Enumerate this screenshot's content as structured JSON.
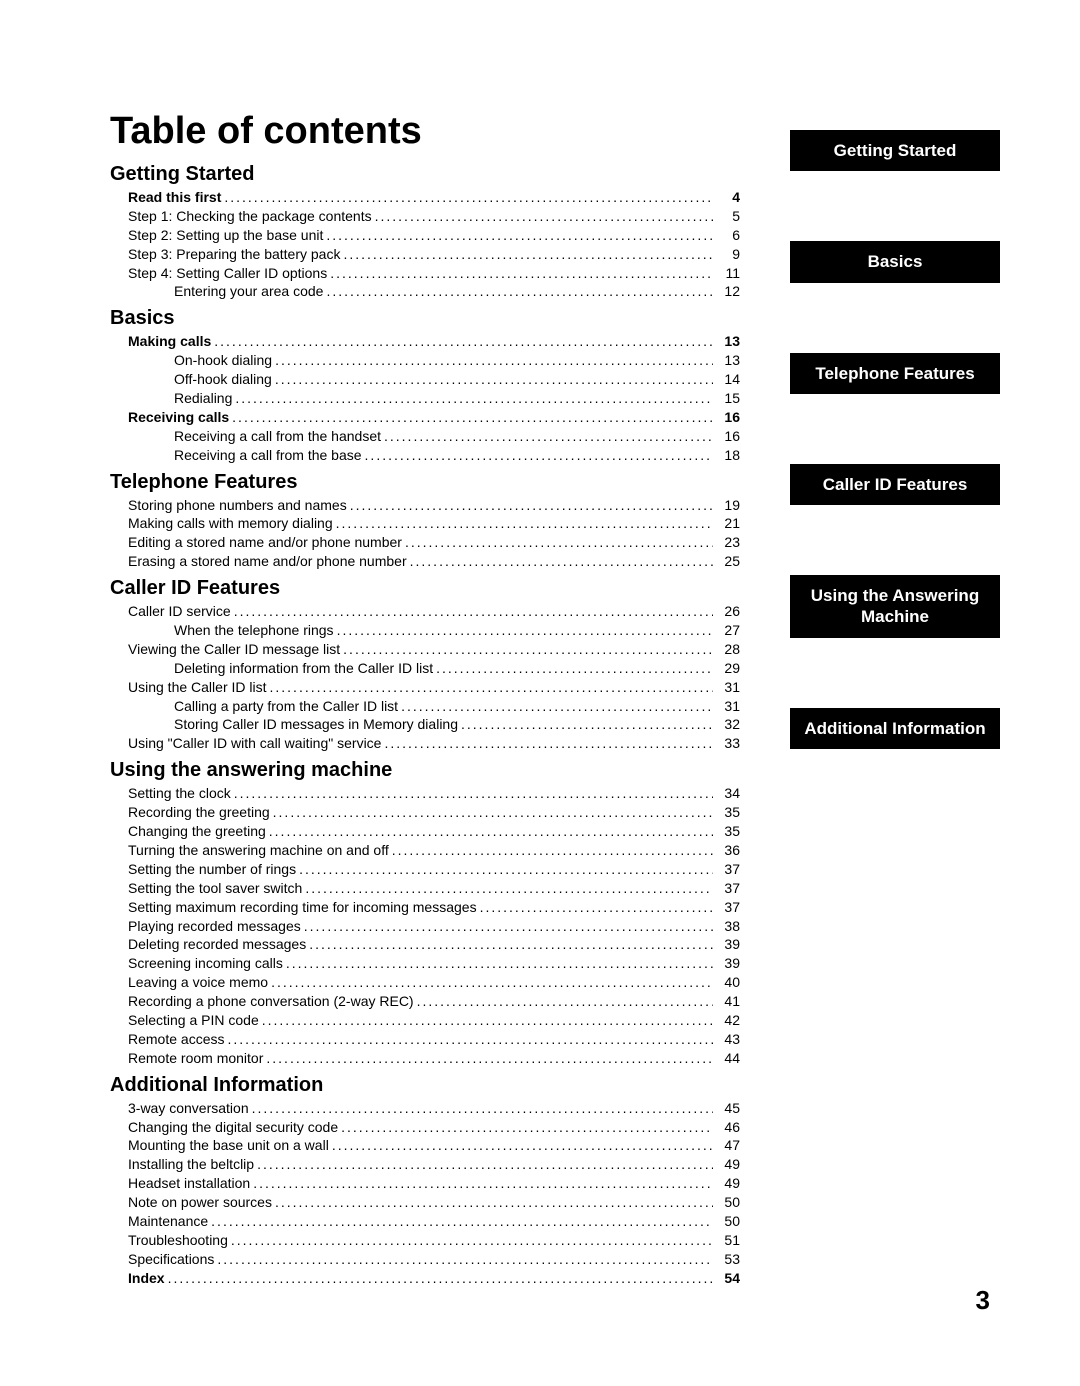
{
  "title": "Table of contents",
  "page_number": "3",
  "tabs": [
    "Getting Started",
    "Basics",
    "Telephone Features",
    "Caller ID Features",
    "Using the Answering Machine",
    "Additional Information"
  ],
  "sections": [
    {
      "heading": "Getting Started",
      "items": [
        {
          "label": "Read this first",
          "page": "4",
          "indent": 1,
          "bold": true
        },
        {
          "label": "Step 1:  Checking the package contents",
          "page": "5",
          "indent": 1
        },
        {
          "label": "Step 2:  Setting up the base unit",
          "page": "6",
          "indent": 1
        },
        {
          "label": "Step 3:  Preparing the battery pack",
          "page": "9",
          "indent": 1
        },
        {
          "label": "Step 4:  Setting Caller ID options",
          "page": "11",
          "indent": 1
        },
        {
          "label": "Entering your area code",
          "page": "12",
          "indent": 2
        }
      ]
    },
    {
      "heading": "Basics",
      "items": [
        {
          "label": "Making calls",
          "page": "13",
          "indent": 1,
          "bold": true
        },
        {
          "label": "On-hook dialing",
          "page": "13",
          "indent": 2
        },
        {
          "label": "Off-hook dialing",
          "page": "14",
          "indent": 2
        },
        {
          "label": "Redialing",
          "page": "15",
          "indent": 2
        },
        {
          "label": "Receiving calls",
          "page": "16",
          "indent": 1,
          "bold": true
        },
        {
          "label": "Receiving a call from the handset",
          "page": "16",
          "indent": 2
        },
        {
          "label": "Receiving a call from the base",
          "page": "18",
          "indent": 2
        }
      ]
    },
    {
      "heading": "Telephone Features",
      "items": [
        {
          "label": "Storing phone numbers and names",
          "page": "19",
          "indent": 1
        },
        {
          "label": "Making calls with memory dialing",
          "page": "21",
          "indent": 1
        },
        {
          "label": "Editing a stored name and/or phone number",
          "page": "23",
          "indent": 1
        },
        {
          "label": "Erasing a stored name and/or phone number",
          "page": "25",
          "indent": 1
        }
      ]
    },
    {
      "heading": "Caller ID Features",
      "items": [
        {
          "label": "Caller ID service",
          "page": "26",
          "indent": 1
        },
        {
          "label": "When the telephone rings",
          "page": "27",
          "indent": 2
        },
        {
          "label": "Viewing the Caller ID message list",
          "page": "28",
          "indent": 1
        },
        {
          "label": "Deleting information from the Caller ID list",
          "page": "29",
          "indent": 2
        },
        {
          "label": "Using the Caller ID list",
          "page": "31",
          "indent": 1
        },
        {
          "label": "Calling a party from the Caller ID list",
          "page": "31",
          "indent": 2
        },
        {
          "label": "Storing Caller ID messages in Memory dialing",
          "page": "32",
          "indent": 2
        },
        {
          "label": "Using \"Caller ID with call waiting\" service",
          "page": "33",
          "indent": 1
        }
      ]
    },
    {
      "heading": "Using the answering machine",
      "items": [
        {
          "label": "Setting the clock",
          "page": "34",
          "indent": 1
        },
        {
          "label": "Recording the greeting",
          "page": "35",
          "indent": 1
        },
        {
          "label": "Changing the greeting",
          "page": "35",
          "indent": 1
        },
        {
          "label": "Turning the answering machine on and off",
          "page": "36",
          "indent": 1
        },
        {
          "label": "Setting the number of rings",
          "page": "37",
          "indent": 1
        },
        {
          "label": "Setting the tool saver switch",
          "page": "37",
          "indent": 1
        },
        {
          "label": "Setting maximum recording time for incoming messages",
          "page": "37",
          "indent": 1
        },
        {
          "label": "Playing recorded messages",
          "page": "38",
          "indent": 1
        },
        {
          "label": "Deleting recorded messages",
          "page": "39",
          "indent": 1
        },
        {
          "label": "Screening incoming calls",
          "page": "39",
          "indent": 1
        },
        {
          "label": "Leaving a voice memo",
          "page": "40",
          "indent": 1
        },
        {
          "label": "Recording a phone conversation (2-way REC)",
          "page": "41",
          "indent": 1
        },
        {
          "label": "Selecting a PIN code",
          "page": "42",
          "indent": 1
        },
        {
          "label": "Remote access",
          "page": "43",
          "indent": 1
        },
        {
          "label": "Remote room monitor",
          "page": "44",
          "indent": 1
        }
      ]
    },
    {
      "heading": "Additional Information",
      "items": [
        {
          "label": "3-way conversation",
          "page": "45",
          "indent": 1
        },
        {
          "label": "Changing the digital security code",
          "page": "46",
          "indent": 1
        },
        {
          "label": "Mounting the base unit on a wall",
          "page": "47",
          "indent": 1
        },
        {
          "label": "Installing the beltclip",
          "page": "49",
          "indent": 1
        },
        {
          "label": "Headset installation",
          "page": "49",
          "indent": 1
        },
        {
          "label": "Note on power sources",
          "page": "50",
          "indent": 1
        },
        {
          "label": "Maintenance",
          "page": "50",
          "indent": 1
        },
        {
          "label": "Troubleshooting",
          "page": "51",
          "indent": 1
        },
        {
          "label": "Specifications",
          "page": "53",
          "indent": 1
        },
        {
          "label": "Index",
          "page": "54",
          "indent": 1,
          "bold": true
        }
      ]
    }
  ]
}
